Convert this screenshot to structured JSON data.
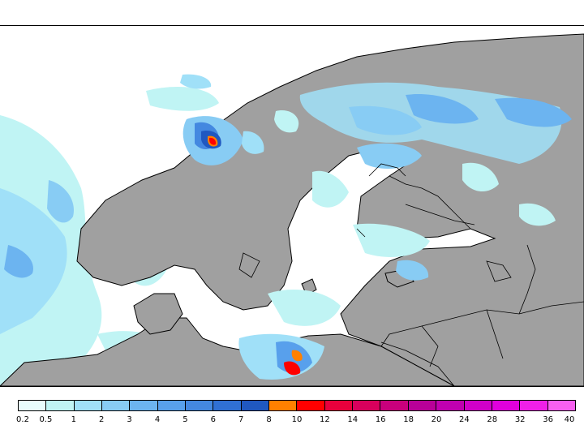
{
  "map": {
    "land_color": "#a0a0a0",
    "sea_color": "#ffffff",
    "border_color": "#000000"
  },
  "legend": {
    "labels": [
      "0.2",
      "0.5",
      "1",
      "2",
      "3",
      "4",
      "5",
      "6",
      "7",
      "8",
      "10",
      "12",
      "14",
      "16",
      "18",
      "20",
      "24",
      "28",
      "32",
      "36",
      "40"
    ],
    "colors": [
      "#e8fcfc",
      "#c0f4f4",
      "#a0e0f8",
      "#88ccf4",
      "#6cb4f0",
      "#58a0ec",
      "#4488e0",
      "#3070d4",
      "#2058c0",
      "#ff8000",
      "#ff0000",
      "#e8003c",
      "#d8005c",
      "#c8007c",
      "#b80098",
      "#c000b0",
      "#d000c8",
      "#e000dc",
      "#f020e8",
      "#f860f0"
    ]
  }
}
